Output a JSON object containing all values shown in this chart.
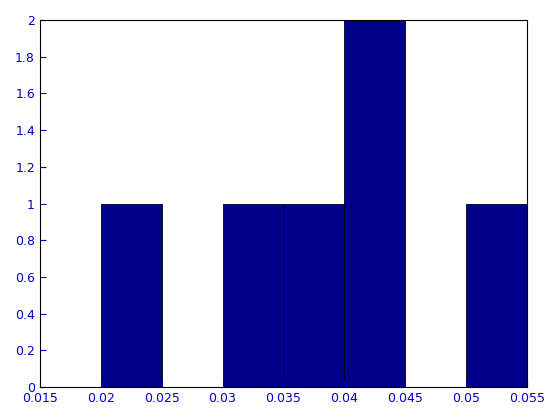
{
  "bin_edges": [
    0.015,
    0.02,
    0.025,
    0.03,
    0.035,
    0.04,
    0.045,
    0.05,
    0.055
  ],
  "counts": [
    0,
    1,
    0,
    1,
    1,
    2,
    0,
    1
  ],
  "bar_color": "#00008B",
  "edge_color": "#00000A",
  "xlim": [
    0.015,
    0.055
  ],
  "ylim": [
    0,
    2.0
  ],
  "xticks": [
    0.015,
    0.02,
    0.025,
    0.03,
    0.035,
    0.04,
    0.045,
    0.05,
    0.055
  ],
  "yticks": [
    0,
    0.2,
    0.4,
    0.6,
    0.8,
    1.0,
    1.2,
    1.4,
    1.6,
    1.8,
    2.0
  ],
  "tick_color": "#0000CC",
  "spine_color": "#000000",
  "background_color": "#ffffff",
  "figure_color": "#ffffff"
}
